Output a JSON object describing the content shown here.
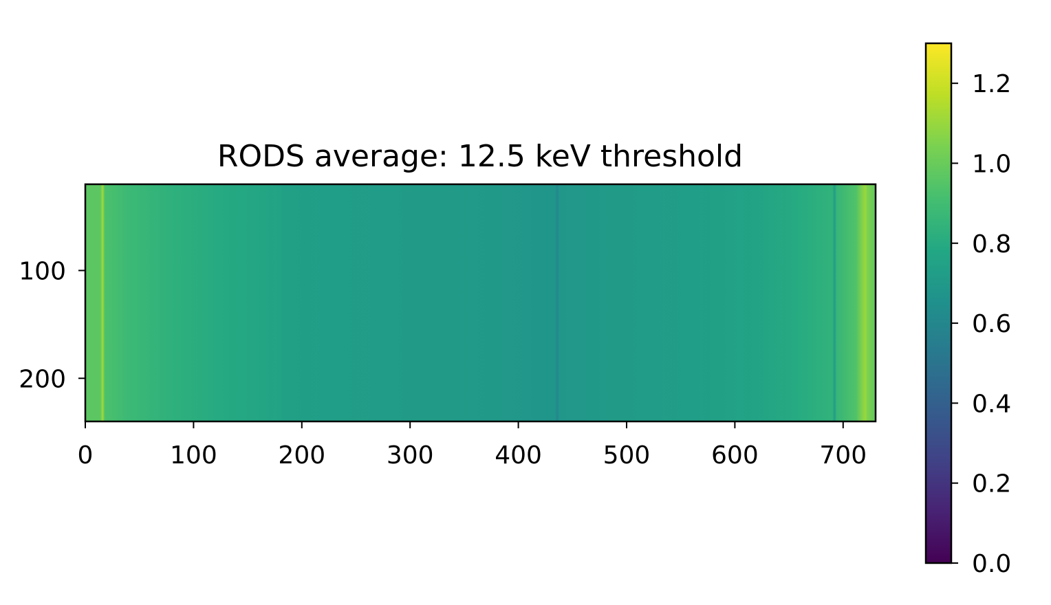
{
  "chart_data": [
    {
      "type": "heatmap",
      "title": "RODS average: 12.5 keV threshold",
      "xlabel": "",
      "ylabel": "",
      "xlim": [
        0,
        730
      ],
      "ylim": [
        20,
        240
      ],
      "x_ticks": [
        0,
        100,
        200,
        300,
        400,
        500,
        600,
        700
      ],
      "y_ticks": [
        100,
        200
      ],
      "colormap": "viridis",
      "color_range": [
        0.0,
        1.3
      ],
      "column_profile": [
        {
          "x": 0,
          "v": 0.97
        },
        {
          "x": 14,
          "v": 0.97
        },
        {
          "x": 16,
          "v": 1.12
        },
        {
          "x": 18,
          "v": 0.93
        },
        {
          "x": 40,
          "v": 0.88
        },
        {
          "x": 80,
          "v": 0.83
        },
        {
          "x": 130,
          "v": 0.79
        },
        {
          "x": 180,
          "v": 0.76
        },
        {
          "x": 182,
          "v": 0.74
        },
        {
          "x": 230,
          "v": 0.73
        },
        {
          "x": 300,
          "v": 0.71
        },
        {
          "x": 380,
          "v": 0.7
        },
        {
          "x": 434,
          "v": 0.68
        },
        {
          "x": 436,
          "v": 0.6
        },
        {
          "x": 438,
          "v": 0.69
        },
        {
          "x": 500,
          "v": 0.71
        },
        {
          "x": 560,
          "v": 0.73
        },
        {
          "x": 620,
          "v": 0.76
        },
        {
          "x": 660,
          "v": 0.8
        },
        {
          "x": 690,
          "v": 0.84
        },
        {
          "x": 692,
          "v": 0.72
        },
        {
          "x": 694,
          "v": 0.86
        },
        {
          "x": 712,
          "v": 0.94
        },
        {
          "x": 719,
          "v": 1.08
        },
        {
          "x": 721,
          "v": 1.1
        },
        {
          "x": 722,
          "v": 1.05
        },
        {
          "x": 730,
          "v": 0.98
        }
      ]
    },
    {
      "type": "colorbar",
      "colormap": "viridis",
      "range": [
        0.0,
        1.3
      ],
      "ticks": [
        "0.0",
        "0.2",
        "0.4",
        "0.6",
        "0.8",
        "1.0",
        "1.2"
      ]
    }
  ]
}
